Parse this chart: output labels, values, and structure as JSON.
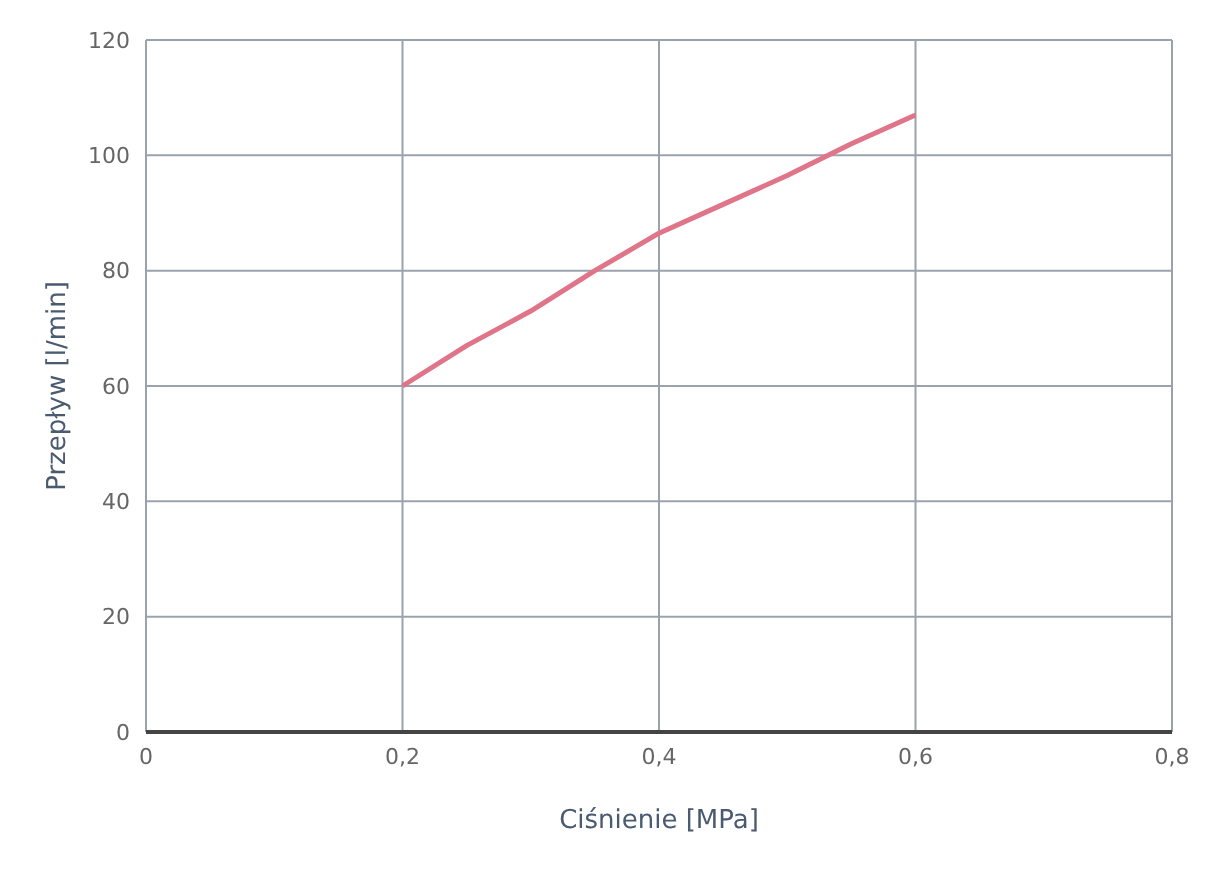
{
  "chart_data": {
    "type": "line",
    "xlabel": "Ciśnienie [MPa]",
    "ylabel": "Przepływ [l/min]",
    "series": [
      {
        "color": "#e07488",
        "x": [
          0.2,
          0.25,
          0.3,
          0.35,
          0.4,
          0.45,
          0.5,
          0.55,
          0.6
        ],
        "values": [
          60,
          67,
          73,
          80,
          86.5,
          91.5,
          96.5,
          102,
          107
        ]
      }
    ],
    "xlim": [
      0,
      0.8
    ],
    "xticks": [
      0,
      {
        "value": 0.2,
        "label": "0,2"
      },
      {
        "value": 0.4,
        "label": "0,4"
      },
      {
        "value": 0.6,
        "label": "0,6"
      },
      {
        "value": 0.8,
        "label": "0,8"
      }
    ],
    "ylim": [
      0,
      120
    ],
    "yticks": [
      0,
      20,
      40,
      60,
      80,
      100,
      120
    ],
    "grid": true,
    "marker": "none",
    "line_style": "solid"
  }
}
